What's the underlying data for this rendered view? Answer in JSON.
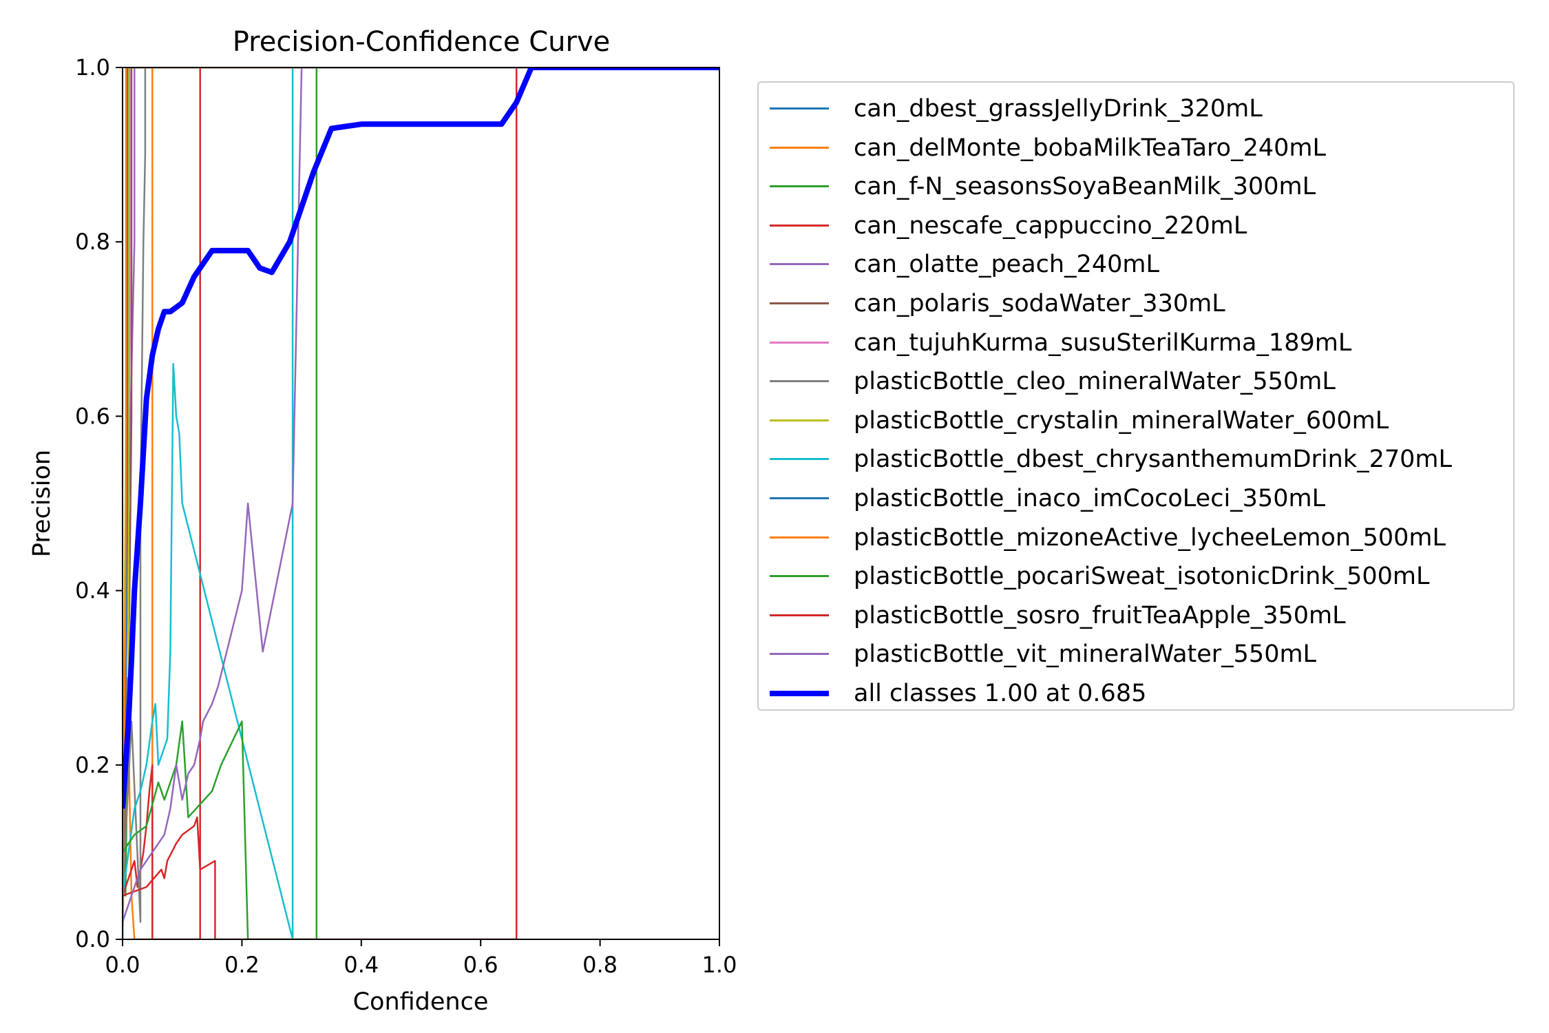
{
  "chart_data": {
    "type": "line",
    "title": "Precision-Confidence Curve",
    "xlabel": "Confidence",
    "ylabel": "Precision",
    "xlim": [
      0,
      1
    ],
    "ylim": [
      0,
      1
    ],
    "xticks": [
      "0.0",
      "0.2",
      "0.4",
      "0.6",
      "0.8",
      "1.0"
    ],
    "yticks": [
      "0.0",
      "0.2",
      "0.4",
      "0.6",
      "0.8",
      "1.0"
    ],
    "grid": false,
    "legend_position": "outside-right",
    "series": [
      {
        "name": "can_dbest_grassJellyDrink_320mL",
        "color": "#1f77b4",
        "x": [
          0.0,
          0.003,
          0.006,
          0.006,
          1.0
        ],
        "y": [
          0.05,
          0.15,
          0.3,
          1.0,
          1.0
        ]
      },
      {
        "name": "can_delMonte_bobaMilkTeaTaro_240mL",
        "color": "#ff7f0e",
        "x": [
          0.0,
          0.008,
          0.015,
          0.02,
          0.02,
          0.045,
          0.05,
          0.05,
          1.0
        ],
        "y": [
          0.0,
          0.3,
          0.05,
          0.0,
          0.0,
          0.0,
          0.0,
          1.0,
          1.0
        ]
      },
      {
        "name": "can_f-N_seasonsSoyaBeanMilk_300mL",
        "color": "#2ca02c",
        "x": [
          0.0,
          0.005,
          0.01,
          0.01,
          1.0
        ],
        "y": [
          0.15,
          0.05,
          0.3,
          1.0,
          1.0
        ]
      },
      {
        "name": "can_nescafe_cappuccino_220mL",
        "color": "#d62728",
        "x": [
          0.0,
          0.01,
          0.02,
          0.025,
          0.03,
          0.035,
          0.04,
          0.045,
          0.05,
          0.05,
          0.13,
          0.13,
          1.0
        ],
        "y": [
          0.05,
          0.07,
          0.09,
          0.06,
          0.08,
          0.1,
          0.13,
          0.17,
          0.2,
          0.0,
          0.0,
          1.0,
          1.0
        ]
      },
      {
        "name": "can_olatte_peach_240mL",
        "color": "#9467bd",
        "x": [
          0.0,
          0.01,
          0.02,
          0.02,
          0.025,
          0.025,
          1.0
        ],
        "y": [
          0.1,
          0.5,
          0.8,
          1.0,
          1.0,
          1.0,
          1.0
        ]
      },
      {
        "name": "can_polaris_sodaWater_330mL",
        "color": "#8c564b",
        "x": [
          0.0,
          0.01,
          0.015,
          0.015,
          1.0
        ],
        "y": [
          0.05,
          0.3,
          0.6,
          1.0,
          1.0
        ]
      },
      {
        "name": "can_tujuhKurma_susuSterilKurma_189mL",
        "color": "#e377c2",
        "x": [
          0.0,
          0.008,
          0.012,
          0.012,
          1.0
        ],
        "y": [
          0.05,
          0.4,
          0.7,
          1.0,
          1.0
        ]
      },
      {
        "name": "plasticBottle_cleo_mineralWater_550mL",
        "color": "#7f7f7f",
        "x": [
          0.0,
          0.015,
          0.03,
          0.03,
          0.035,
          0.038,
          0.038,
          1.0
        ],
        "y": [
          0.05,
          0.25,
          0.02,
          0.5,
          0.8,
          0.9,
          1.0,
          1.0
        ]
      },
      {
        "name": "plasticBottle_crystalin_mineralWater_600mL",
        "color": "#bcbd22",
        "x": [
          0.0,
          0.005,
          0.008,
          0.01,
          0.01,
          1.0
        ],
        "y": [
          0.1,
          0.5,
          0.9,
          0.3,
          1.0,
          1.0
        ]
      },
      {
        "name": "plasticBottle_dbest_chrysanthemumDrink_270mL",
        "color": "#17becf",
        "x": [
          0.0,
          0.01,
          0.02,
          0.03,
          0.04,
          0.05,
          0.055,
          0.06,
          0.07,
          0.075,
          0.08,
          0.085,
          0.09,
          0.095,
          0.1,
          0.285,
          0.285,
          0.3,
          1.0
        ],
        "y": [
          0.05,
          0.1,
          0.15,
          0.17,
          0.2,
          0.25,
          0.27,
          0.2,
          0.22,
          0.23,
          0.33,
          0.66,
          0.6,
          0.58,
          0.5,
          0.0,
          1.0,
          1.0,
          1.0
        ]
      },
      {
        "name": "plasticBottle_inaco_imCocoLeci_350mL",
        "color": "#1f77b4",
        "x": [
          0.0,
          0.004,
          0.008,
          0.008,
          1.0
        ],
        "y": [
          0.05,
          0.2,
          0.5,
          1.0,
          1.0
        ]
      },
      {
        "name": "plasticBottle_mizoneActive_lycheeLemon_500mL",
        "color": "#ff7f0e",
        "x": [
          0.0,
          0.003,
          0.006,
          0.006,
          1.0
        ],
        "y": [
          0.0,
          0.25,
          0.5,
          1.0,
          1.0
        ]
      },
      {
        "name": "plasticBottle_pocariSweat_isotonicDrink_500mL",
        "color": "#2ca02c",
        "x": [
          0.0,
          0.02,
          0.04,
          0.06,
          0.065,
          0.07,
          0.08,
          0.09,
          0.1,
          0.11,
          0.15,
          0.165,
          0.2,
          0.21,
          0.21,
          0.325,
          0.325,
          1.0
        ],
        "y": [
          0.1,
          0.12,
          0.13,
          0.18,
          0.17,
          0.16,
          0.18,
          0.2,
          0.25,
          0.14,
          0.17,
          0.2,
          0.25,
          0.0,
          0.0,
          0.0,
          1.0,
          1.0
        ]
      },
      {
        "name": "plasticBottle_sosro_fruitTeaApple_350mL",
        "color": "#d62728",
        "x": [
          0.0,
          0.04,
          0.065,
          0.07,
          0.075,
          0.09,
          0.1,
          0.12,
          0.125,
          0.13,
          0.13,
          0.155,
          0.155,
          0.66,
          0.66,
          1.0
        ],
        "y": [
          0.05,
          0.06,
          0.08,
          0.07,
          0.09,
          0.11,
          0.12,
          0.13,
          0.14,
          0.08,
          0.08,
          0.09,
          0.0,
          0.0,
          1.0,
          1.0
        ]
      },
      {
        "name": "plasticBottle_vit_mineralWater_550mL",
        "color": "#9467bd",
        "x": [
          0.0,
          0.03,
          0.04,
          0.05,
          0.07,
          0.08,
          0.09,
          0.1,
          0.11,
          0.12,
          0.13,
          0.135,
          0.15,
          0.16,
          0.2,
          0.21,
          0.235,
          0.285,
          0.3,
          0.3,
          1.0
        ],
        "y": [
          0.02,
          0.08,
          0.09,
          0.1,
          0.12,
          0.15,
          0.2,
          0.16,
          0.19,
          0.2,
          0.23,
          0.25,
          0.27,
          0.29,
          0.4,
          0.5,
          0.33,
          0.5,
          1.0,
          1.0,
          1.0
        ]
      },
      {
        "name": "all classes 1.00 at 0.685",
        "color": "#0000ff",
        "bold": true,
        "x": [
          0.0,
          0.01,
          0.015,
          0.02,
          0.03,
          0.04,
          0.05,
          0.06,
          0.07,
          0.08,
          0.1,
          0.12,
          0.15,
          0.17,
          0.19,
          0.21,
          0.23,
          0.25,
          0.28,
          0.3,
          0.32,
          0.35,
          0.4,
          0.5,
          0.6,
          0.635,
          0.66,
          0.685,
          0.8,
          1.0
        ],
        "y": [
          0.15,
          0.25,
          0.32,
          0.4,
          0.5,
          0.62,
          0.67,
          0.7,
          0.72,
          0.72,
          0.73,
          0.76,
          0.79,
          0.79,
          0.79,
          0.79,
          0.77,
          0.765,
          0.8,
          0.84,
          0.88,
          0.93,
          0.935,
          0.935,
          0.935,
          0.935,
          0.96,
          1.0,
          1.0,
          1.0
        ]
      }
    ]
  }
}
